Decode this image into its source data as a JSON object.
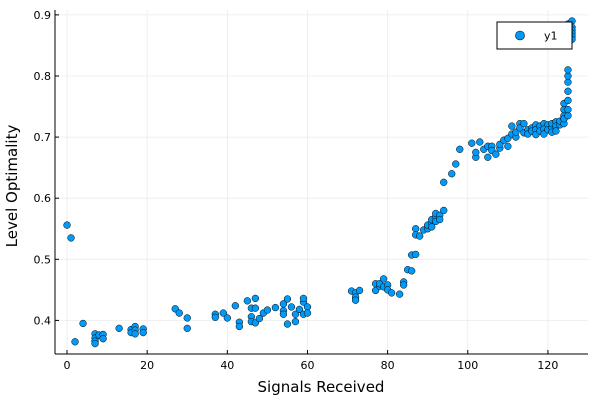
{
  "colors": {
    "series": "#009AF9",
    "marker_stroke": "#000000",
    "grid": "#ebebeb",
    "axis": "#000000",
    "background": "#ffffff"
  },
  "chart_data": {
    "type": "scatter",
    "title": "",
    "xlabel": "Signals Received",
    "ylabel": "Level Optimality",
    "xlim": [
      -3,
      130
    ],
    "ylim": [
      0.345,
      0.908
    ],
    "xticks": [
      0,
      20,
      40,
      60,
      80,
      100,
      120
    ],
    "yticks": [
      0.4,
      0.5,
      0.6,
      0.7,
      0.8,
      0.9
    ],
    "grid": true,
    "legend_position": "top-right",
    "series": [
      {
        "name": "y1",
        "points": [
          [
            0,
            0.556
          ],
          [
            1,
            0.535
          ],
          [
            2,
            0.365
          ],
          [
            4,
            0.395
          ],
          [
            7,
            0.378
          ],
          [
            7,
            0.371
          ],
          [
            7,
            0.366
          ],
          [
            7,
            0.362
          ],
          [
            8,
            0.376
          ],
          [
            9,
            0.377
          ],
          [
            9,
            0.37
          ],
          [
            13,
            0.387
          ],
          [
            16,
            0.385
          ],
          [
            16,
            0.38
          ],
          [
            17,
            0.39
          ],
          [
            17,
            0.384
          ],
          [
            17,
            0.378
          ],
          [
            19,
            0.386
          ],
          [
            19,
            0.38
          ],
          [
            27,
            0.419
          ],
          [
            28,
            0.412
          ],
          [
            30,
            0.404
          ],
          [
            30,
            0.387
          ],
          [
            37,
            0.41
          ],
          [
            37,
            0.405
          ],
          [
            39,
            0.412
          ],
          [
            40,
            0.404
          ],
          [
            42,
            0.424
          ],
          [
            43,
            0.397
          ],
          [
            43,
            0.39
          ],
          [
            45,
            0.432
          ],
          [
            46,
            0.42
          ],
          [
            46,
            0.406
          ],
          [
            46,
            0.398
          ],
          [
            47,
            0.436
          ],
          [
            47,
            0.42
          ],
          [
            47,
            0.396
          ],
          [
            48,
            0.403
          ],
          [
            49,
            0.412
          ],
          [
            50,
            0.417
          ],
          [
            52,
            0.421
          ],
          [
            54,
            0.427
          ],
          [
            54,
            0.416
          ],
          [
            54,
            0.41
          ],
          [
            55,
            0.435
          ],
          [
            55,
            0.394
          ],
          [
            56,
            0.422
          ],
          [
            57,
            0.41
          ],
          [
            57,
            0.398
          ],
          [
            58,
            0.418
          ],
          [
            59,
            0.43
          ],
          [
            59,
            0.436
          ],
          [
            59,
            0.41
          ],
          [
            60,
            0.422
          ],
          [
            60,
            0.412
          ],
          [
            71,
            0.448
          ],
          [
            72,
            0.445
          ],
          [
            72,
            0.438
          ],
          [
            72,
            0.433
          ],
          [
            73,
            0.449
          ],
          [
            77,
            0.46
          ],
          [
            77,
            0.449
          ],
          [
            78,
            0.456
          ],
          [
            78,
            0.46
          ],
          [
            79,
            0.455
          ],
          [
            79,
            0.468
          ],
          [
            80,
            0.458
          ],
          [
            80,
            0.45
          ],
          [
            81,
            0.445
          ],
          [
            83,
            0.443
          ],
          [
            84,
            0.463
          ],
          [
            84,
            0.458
          ],
          [
            85,
            0.483
          ],
          [
            86,
            0.481
          ],
          [
            86,
            0.507
          ],
          [
            87,
            0.508
          ],
          [
            87,
            0.55
          ],
          [
            87,
            0.54
          ],
          [
            88,
            0.538
          ],
          [
            89,
            0.548
          ],
          [
            90,
            0.55
          ],
          [
            90,
            0.556
          ],
          [
            91,
            0.56
          ],
          [
            91,
            0.553
          ],
          [
            91,
            0.565
          ],
          [
            92,
            0.57
          ],
          [
            92,
            0.562
          ],
          [
            92,
            0.575
          ],
          [
            93,
            0.572
          ],
          [
            93,
            0.565
          ],
          [
            94,
            0.58
          ],
          [
            94,
            0.626
          ],
          [
            96,
            0.64
          ],
          [
            97,
            0.656
          ],
          [
            98,
            0.68
          ],
          [
            101,
            0.69
          ],
          [
            102,
            0.667
          ],
          [
            102,
            0.675
          ],
          [
            103,
            0.692
          ],
          [
            104,
            0.68
          ],
          [
            105,
            0.685
          ],
          [
            105,
            0.667
          ],
          [
            106,
            0.685
          ],
          [
            106,
            0.678
          ],
          [
            107,
            0.672
          ],
          [
            108,
            0.682
          ],
          [
            108,
            0.688
          ],
          [
            109,
            0.695
          ],
          [
            110,
            0.698
          ],
          [
            110,
            0.685
          ],
          [
            111,
            0.705
          ],
          [
            111,
            0.718
          ],
          [
            112,
            0.7
          ],
          [
            112,
            0.708
          ],
          [
            113,
            0.722
          ],
          [
            113,
            0.715
          ],
          [
            114,
            0.722
          ],
          [
            114,
            0.707
          ],
          [
            115,
            0.712
          ],
          [
            115,
            0.705
          ],
          [
            116,
            0.715
          ],
          [
            116,
            0.71
          ],
          [
            117,
            0.72
          ],
          [
            117,
            0.712
          ],
          [
            117,
            0.704
          ],
          [
            118,
            0.718
          ],
          [
            118,
            0.71
          ],
          [
            119,
            0.722
          ],
          [
            119,
            0.713
          ],
          [
            119,
            0.705
          ],
          [
            120,
            0.72
          ],
          [
            120,
            0.712
          ],
          [
            121,
            0.715
          ],
          [
            121,
            0.708
          ],
          [
            121,
            0.722
          ],
          [
            122,
            0.725
          ],
          [
            122,
            0.718
          ],
          [
            122,
            0.71
          ],
          [
            123,
            0.72
          ],
          [
            123,
            0.726
          ],
          [
            124,
            0.73
          ],
          [
            124,
            0.722
          ],
          [
            124,
            0.735
          ],
          [
            124,
            0.745
          ],
          [
            124,
            0.755
          ],
          [
            124,
            0.73
          ],
          [
            125,
            0.735
          ],
          [
            125,
            0.745
          ],
          [
            125,
            0.76
          ],
          [
            125,
            0.775
          ],
          [
            125,
            0.79
          ],
          [
            125,
            0.8
          ],
          [
            125,
            0.81
          ],
          [
            125,
            0.85
          ],
          [
            125,
            0.86
          ],
          [
            125,
            0.87
          ],
          [
            125,
            0.875
          ],
          [
            125,
            0.885
          ],
          [
            126,
            0.89
          ],
          [
            126,
            0.88
          ],
          [
            126,
            0.875
          ],
          [
            126,
            0.87
          ],
          [
            126,
            0.865
          ],
          [
            126,
            0.86
          ]
        ]
      }
    ]
  }
}
